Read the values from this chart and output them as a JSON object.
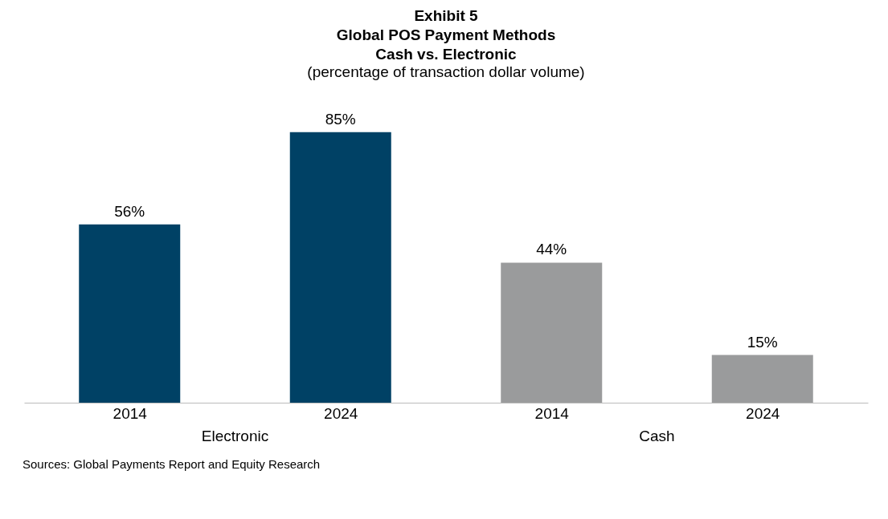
{
  "chart_data": {
    "type": "bar",
    "title": "Exhibit 5\nGlobal POS Payment Methods\nCash vs. Electronic",
    "subtitle": "(percentage of transaction dollar volume)",
    "categories": [
      "2014",
      "2024",
      "2014",
      "2024"
    ],
    "series": [
      {
        "name": "Electronic",
        "color": "#004165",
        "values": [
          56,
          85,
          null,
          null
        ],
        "value_labels": [
          "56%",
          "85%",
          null,
          null
        ]
      },
      {
        "name": "Cash",
        "color": "#9a9b9c",
        "values": [
          null,
          null,
          44,
          15
        ],
        "value_labels": [
          null,
          null,
          "44%",
          "15%"
        ]
      }
    ],
    "annotations": [
      "Sources: Global Payments Report and Equity Research"
    ]
  }
}
